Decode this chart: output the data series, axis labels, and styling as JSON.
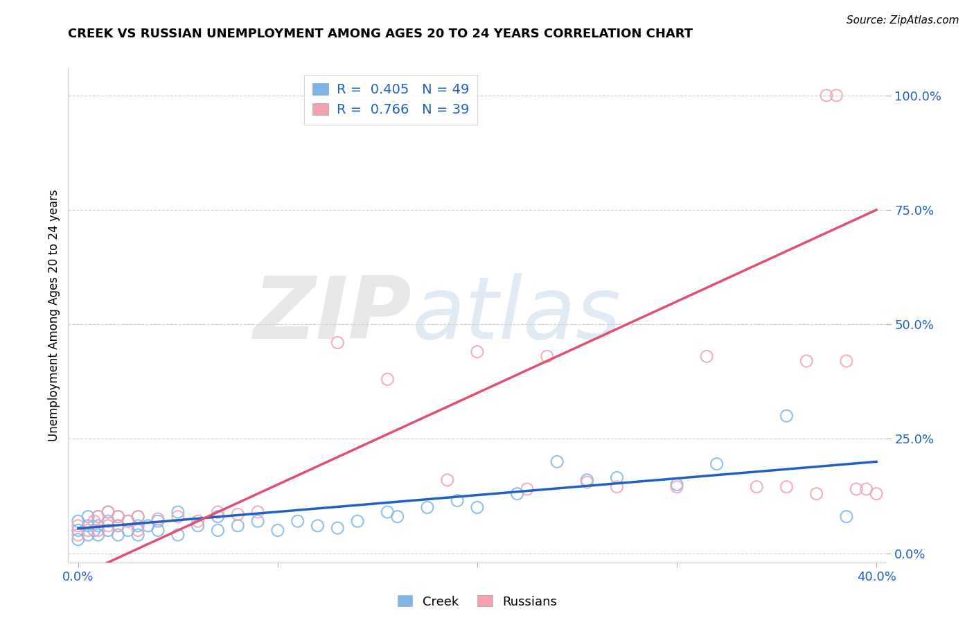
{
  "title": "CREEK VS RUSSIAN UNEMPLOYMENT AMONG AGES 20 TO 24 YEARS CORRELATION CHART",
  "source": "Source: ZipAtlas.com",
  "ylabel": "Unemployment Among Ages 20 to 24 years",
  "xlim": [
    -0.005,
    0.405
  ],
  "ylim": [
    -0.02,
    1.06
  ],
  "xticks": [
    0.0,
    0.1,
    0.2,
    0.3,
    0.4
  ],
  "xtick_labels": [
    "0.0%",
    "",
    "",
    "",
    "40.0%"
  ],
  "ytick_labels": [
    "0.0%",
    "25.0%",
    "50.0%",
    "75.0%",
    "100.0%"
  ],
  "yticks": [
    0.0,
    0.25,
    0.5,
    0.75,
    1.0
  ],
  "creek_R": 0.405,
  "creek_N": 49,
  "russian_R": 0.766,
  "russian_N": 39,
  "creek_color": "#7eb5e8",
  "russian_color": "#f5a0b0",
  "creek_line_color": "#2060c0",
  "russian_line_color": "#e05070",
  "watermark_zip": "ZIP",
  "watermark_atlas": "atlas",
  "creek_x": [
    0.0,
    0.0,
    0.0,
    0.005,
    0.005,
    0.005,
    0.008,
    0.01,
    0.01,
    0.01,
    0.015,
    0.015,
    0.015,
    0.02,
    0.02,
    0.02,
    0.025,
    0.025,
    0.03,
    0.03,
    0.03,
    0.035,
    0.04,
    0.04,
    0.05,
    0.05,
    0.06,
    0.07,
    0.07,
    0.08,
    0.09,
    0.1,
    0.11,
    0.12,
    0.13,
    0.14,
    0.155,
    0.16,
    0.175,
    0.19,
    0.2,
    0.22,
    0.24,
    0.255,
    0.27,
    0.3,
    0.32,
    0.355,
    0.385
  ],
  "creek_y": [
    0.03,
    0.05,
    0.07,
    0.04,
    0.06,
    0.08,
    0.05,
    0.04,
    0.06,
    0.08,
    0.05,
    0.07,
    0.09,
    0.04,
    0.06,
    0.08,
    0.05,
    0.07,
    0.04,
    0.06,
    0.08,
    0.06,
    0.05,
    0.07,
    0.04,
    0.09,
    0.06,
    0.05,
    0.08,
    0.06,
    0.07,
    0.05,
    0.07,
    0.06,
    0.055,
    0.07,
    0.09,
    0.08,
    0.1,
    0.115,
    0.1,
    0.13,
    0.2,
    0.16,
    0.165,
    0.15,
    0.195,
    0.3,
    0.08
  ],
  "russian_x": [
    0.0,
    0.0,
    0.005,
    0.008,
    0.01,
    0.01,
    0.015,
    0.015,
    0.02,
    0.02,
    0.025,
    0.03,
    0.03,
    0.04,
    0.05,
    0.06,
    0.07,
    0.08,
    0.09,
    0.13,
    0.155,
    0.185,
    0.2,
    0.225,
    0.235,
    0.255,
    0.27,
    0.3,
    0.315,
    0.34,
    0.355,
    0.365,
    0.37,
    0.375,
    0.38,
    0.385,
    0.39,
    0.395,
    0.4
  ],
  "russian_y": [
    0.04,
    0.06,
    0.05,
    0.07,
    0.05,
    0.08,
    0.06,
    0.09,
    0.06,
    0.08,
    0.07,
    0.05,
    0.08,
    0.075,
    0.08,
    0.07,
    0.09,
    0.085,
    0.09,
    0.46,
    0.38,
    0.16,
    0.44,
    0.14,
    0.43,
    0.155,
    0.145,
    0.145,
    0.43,
    0.145,
    0.145,
    0.42,
    0.13,
    1.0,
    1.0,
    0.42,
    0.14,
    0.14,
    0.13
  ],
  "creek_trend": [
    0.054,
    0.2
  ],
  "russian_trend": [
    -0.05,
    0.75
  ],
  "background_color": "#ffffff",
  "grid_color": "#cccccc"
}
